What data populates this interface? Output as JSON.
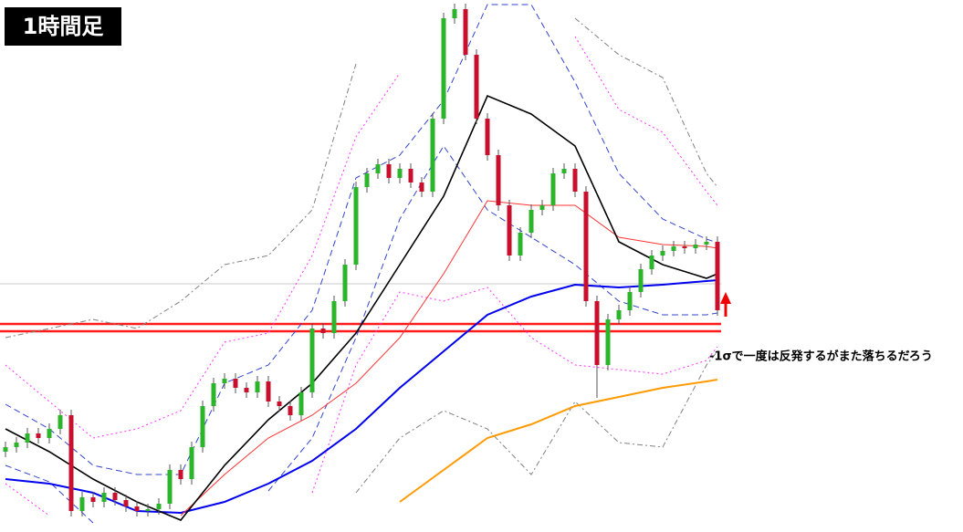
{
  "chart_data": {
    "type": "candlestick",
    "title": "1時間足",
    "annotation": "-1σで一度は反発するがまた落ちるだろう",
    "up_color": "#2ab52a",
    "down_color": "#c8102e",
    "xlim": [
      0,
      65
    ],
    "ylim": [
      0,
      583
    ],
    "x": [
      0,
      1,
      2,
      3,
      4,
      5,
      6,
      7,
      8,
      9,
      10,
      11,
      12,
      13,
      14,
      15,
      16,
      17,
      18,
      19,
      20,
      21,
      22,
      23,
      24,
      25,
      26,
      27,
      28,
      29,
      30,
      31,
      32,
      33,
      34,
      35,
      36,
      37,
      38,
      39,
      40,
      41,
      42,
      43,
      44,
      45,
      46,
      47,
      48,
      49,
      50,
      51,
      52,
      53,
      54,
      55,
      56,
      57,
      58,
      59,
      60,
      61,
      62,
      63,
      64,
      65
    ],
    "open": [
      88,
      93,
      98,
      108,
      103,
      113,
      128,
      23,
      38,
      33,
      43,
      35,
      28,
      23,
      25,
      31,
      68,
      58,
      93,
      138,
      163,
      168,
      158,
      153,
      165,
      143,
      138,
      128,
      153,
      223,
      218,
      253,
      293,
      378,
      393,
      403,
      388,
      398,
      383,
      373,
      453,
      563,
      573,
      523,
      453,
      413,
      358,
      303,
      328,
      353,
      358,
      393,
      398,
      373,
      253,
      183,
      233,
      243,
      263,
      288,
      303,
      308,
      313,
      311,
      315,
      318
    ],
    "high": [
      99,
      104,
      114,
      114,
      119,
      134,
      134,
      44,
      44,
      49,
      49,
      41,
      34,
      31,
      37,
      74,
      74,
      99,
      144,
      169,
      174,
      174,
      164,
      171,
      171,
      149,
      144,
      159,
      229,
      229,
      259,
      299,
      384,
      399,
      409,
      409,
      404,
      404,
      389,
      459,
      569,
      579,
      579,
      529,
      459,
      419,
      364,
      334,
      359,
      364,
      399,
      404,
      404,
      379,
      259,
      239,
      249,
      269,
      294,
      309,
      314,
      319,
      319,
      321,
      324,
      324
    ],
    "low": [
      82,
      87,
      92,
      97,
      97,
      107,
      17,
      17,
      27,
      27,
      29,
      22,
      17,
      17,
      19,
      25,
      52,
      52,
      87,
      132,
      157,
      152,
      147,
      147,
      137,
      132,
      122,
      122,
      147,
      212,
      212,
      247,
      287,
      372,
      387,
      382,
      382,
      377,
      367,
      367,
      447,
      557,
      517,
      447,
      407,
      352,
      297,
      297,
      322,
      347,
      352,
      387,
      367,
      247,
      147,
      177,
      227,
      237,
      257,
      282,
      297,
      302,
      305,
      305,
      309,
      237
    ],
    "close": [
      93,
      98,
      108,
      103,
      113,
      128,
      23,
      38,
      33,
      43,
      35,
      28,
      23,
      25,
      31,
      68,
      58,
      93,
      138,
      163,
      168,
      158,
      153,
      165,
      143,
      138,
      128,
      153,
      223,
      218,
      253,
      293,
      378,
      393,
      403,
      388,
      398,
      383,
      373,
      453,
      563,
      573,
      523,
      453,
      413,
      358,
      303,
      328,
      353,
      358,
      393,
      398,
      373,
      253,
      183,
      233,
      243,
      263,
      288,
      303,
      308,
      313,
      311,
      315,
      318,
      243
    ],
    "levels": [
      {
        "value": 272,
        "color": "#c8c8c8"
      },
      {
        "value": 228,
        "color": "#ff1a1a"
      },
      {
        "value": 220,
        "color": "#ff1a1a"
      }
    ],
    "lines": [
      {
        "color": "#808080",
        "style": "dashdot",
        "width": 1,
        "x": [
          0,
          4,
          8,
          12,
          16,
          20,
          24,
          28,
          32,
          36,
          40,
          44,
          48,
          52,
          56,
          60,
          64,
          65
        ],
        "values": [
          213,
          223,
          233,
          223,
          253,
          293,
          303,
          353,
          513,
          null,
          null,
          null,
          null,
          563,
          523,
          498,
          393,
          378
        ]
      },
      {
        "color": "#808080",
        "style": "dashdot",
        "width": 1,
        "x": [
          0,
          4,
          8,
          12,
          16,
          20,
          24,
          28,
          32,
          36,
          40,
          44,
          48,
          52,
          56,
          60,
          64,
          65
        ],
        "values": [
          null,
          null,
          null,
          null,
          null,
          null,
          null,
          null,
          43,
          103,
          133,
          113,
          63,
          143,
          98,
          93,
          183,
          198
        ]
      },
      {
        "color": "#ff33ff",
        "style": "dotted",
        "width": 1,
        "x": [
          0,
          4,
          8,
          12,
          16,
          20,
          24,
          28,
          32,
          36,
          40,
          44,
          48,
          52,
          56,
          60,
          64,
          65
        ],
        "values": [
          183,
          143,
          103,
          113,
          133,
          208,
          218,
          303,
          433,
          503,
          null,
          null,
          null,
          543,
          463,
          438,
          373,
          358
        ]
      },
      {
        "color": "#ff33ff",
        "style": "dotted",
        "width": 1,
        "x": [
          0,
          4,
          8,
          12,
          16,
          20,
          24,
          28,
          32,
          36,
          40,
          44,
          48,
          52,
          56,
          60,
          64,
          65
        ],
        "values": [
          53,
          18,
          null,
          null,
          null,
          null,
          null,
          43,
          183,
          263,
          253,
          268,
          213,
          183,
          178,
          173,
          188,
          203
        ]
      },
      {
        "color": "#3344cc",
        "style": "dashed",
        "width": 1,
        "x": [
          0,
          4,
          8,
          12,
          16,
          20,
          24,
          28,
          32,
          36,
          40,
          44,
          48,
          52,
          56,
          60,
          64,
          65
        ],
        "values": [
          140,
          113,
          73,
          63,
          63,
          163,
          183,
          243,
          388,
          413,
          473,
          578,
          578,
          493,
          393,
          343,
          321,
          317
        ]
      },
      {
        "color": "#3344cc",
        "style": "dashed",
        "width": 1,
        "x": [
          0,
          4,
          8,
          12,
          16,
          20,
          24,
          28,
          32,
          36,
          40,
          44,
          48,
          52,
          56,
          60,
          64,
          65
        ],
        "values": [
          73,
          55,
          10,
          null,
          null,
          null,
          45,
          103,
          213,
          343,
          423,
          353,
          323,
          293,
          253,
          238,
          238,
          240
        ]
      },
      {
        "color": "#ff9a00",
        "style": "solid",
        "width": 2,
        "x": [
          0,
          4,
          8,
          12,
          16,
          20,
          24,
          28,
          32,
          36,
          40,
          44,
          48,
          52,
          56,
          60,
          64,
          65
        ],
        "values": [
          null,
          null,
          null,
          null,
          null,
          null,
          null,
          null,
          null,
          33,
          68,
          103,
          118,
          138,
          148,
          158,
          165,
          167
        ]
      },
      {
        "color": "#0000ee",
        "style": "solid",
        "width": 2,
        "x": [
          0,
          4,
          8,
          12,
          16,
          20,
          24,
          28,
          32,
          36,
          40,
          44,
          48,
          52,
          56,
          60,
          64,
          65
        ],
        "values": [
          58,
          53,
          43,
          23,
          21,
          33,
          53,
          78,
          113,
          158,
          198,
          238,
          258,
          271,
          268,
          271,
          275,
          276
        ]
      },
      {
        "color": "#ff3333",
        "style": "solid",
        "width": 1,
        "x": [
          0,
          4,
          8,
          12,
          16,
          20,
          24,
          28,
          32,
          36,
          40,
          44,
          48,
          52,
          56,
          60,
          64,
          65
        ],
        "values": [
          null,
          null,
          null,
          null,
          18,
          63,
          103,
          128,
          163,
          213,
          283,
          363,
          358,
          358,
          323,
          315,
          313,
          311
        ]
      },
      {
        "color": "#000000",
        "style": "solid",
        "width": 1.6,
        "x": [
          0,
          4,
          8,
          12,
          16,
          20,
          24,
          28,
          32,
          36,
          40,
          44,
          48,
          52,
          56,
          60,
          64,
          65
        ],
        "values": [
          113,
          88,
          58,
          33,
          13,
          73,
          123,
          163,
          218,
          293,
          368,
          478,
          458,
          423,
          318,
          293,
          278,
          283
        ]
      }
    ]
  }
}
